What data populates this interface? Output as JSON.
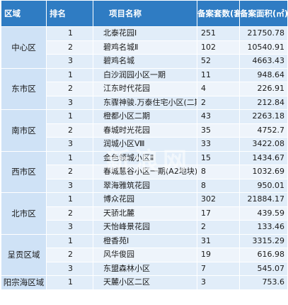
{
  "headers": {
    "district": "区域",
    "rank": "排名",
    "project": "项目名称",
    "count": "备案套数(套)",
    "area": "备案面积(㎡)"
  },
  "groups": [
    {
      "district": "中心区",
      "rows": [
        {
          "rank": "1",
          "name": "北泰花园Ⅰ",
          "count": "251",
          "area": "21750.78"
        },
        {
          "rank": "2",
          "name": "碧鸡名城Ⅱ",
          "count": "102",
          "area": "10540.91"
        },
        {
          "rank": "3",
          "name": "碧鸡名城",
          "count": "52",
          "area": "4663.43"
        }
      ]
    },
    {
      "district": "东市区",
      "rows": [
        {
          "rank": "1",
          "name": "白沙润园小区一期",
          "count": "11",
          "area": "948.64"
        },
        {
          "rank": "2",
          "name": "江东时代花园",
          "count": "4",
          "area": "226.91"
        },
        {
          "rank": "3",
          "name": "东骤神骏.万泰住宅小区(二期)",
          "count": "2",
          "area": "212.84"
        }
      ]
    },
    {
      "district": "南市区",
      "rows": [
        {
          "rank": "1",
          "name": "橙都小区二期",
          "count": "43",
          "area": "2263.18"
        },
        {
          "rank": "2",
          "name": "春城时光花园",
          "count": "35",
          "area": "4752.7"
        },
        {
          "rank": "3",
          "name": "润城小区Ⅷ",
          "count": "33",
          "area": "3422.08"
        }
      ]
    },
    {
      "district": "西市区",
      "rows": [
        {
          "rank": "1",
          "name": "金色领城小区Ⅱ",
          "count": "15",
          "area": "1434.67"
        },
        {
          "rank": "2",
          "name": "春城慧谷小区一期(A2地块)",
          "count": "8",
          "area": "1032.69"
        },
        {
          "rank": "3",
          "name": "翠海雅筑花园",
          "count": "8",
          "area": "950.01"
        }
      ]
    },
    {
      "district": "北市区",
      "rows": [
        {
          "rank": "1",
          "name": "博众花园",
          "count": "302",
          "area": "21884.17"
        },
        {
          "rank": "2",
          "name": "天骄北麓",
          "count": "17",
          "area": "439.59"
        },
        {
          "rank": "3",
          "name": "天怡峰景花园",
          "count": "2",
          "area": "133.46"
        }
      ]
    },
    {
      "district": "呈贡区域",
      "rows": [
        {
          "rank": "1",
          "name": "橙香苑Ⅰ",
          "count": "31",
          "area": "3315.29"
        },
        {
          "rank": "2",
          "name": "风华俊园",
          "count": "19",
          "area": "616.98"
        },
        {
          "rank": "3",
          "name": "东盟森林小区",
          "count": "7",
          "area": "545.07"
        }
      ]
    },
    {
      "district": "阳宗海区域",
      "rows": [
        {
          "rank": "1",
          "name": "天麓小区二区",
          "count": "3",
          "area": "753.6"
        }
      ]
    }
  ],
  "watermark": "新浪网"
}
